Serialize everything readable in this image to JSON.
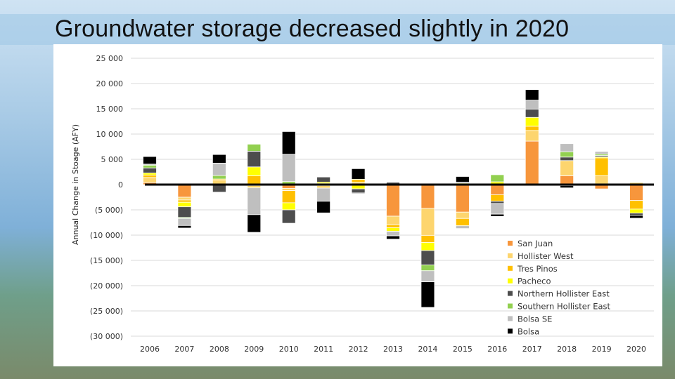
{
  "title": "Groundwater storage decreased slightly in 2020",
  "chart_data": {
    "type": "bar",
    "stacked": true,
    "title": "",
    "xlabel": "",
    "ylabel": "Annual Change in Stoage (AFY)",
    "ylim": [
      -30000,
      25000
    ],
    "yticks": [
      25000,
      20000,
      15000,
      10000,
      5000,
      0,
      -5000,
      -10000,
      -15000,
      -20000,
      -25000,
      -30000
    ],
    "ytick_labels": [
      "25 000",
      "20 000",
      "15 000",
      "10 000",
      "5 000",
      "0",
      "(5 000)",
      "(10 000)",
      "(15 000)",
      "(20 000)",
      "(25 000)",
      "(30 000)"
    ],
    "grid": true,
    "legend_position": "bottom-right",
    "categories": [
      "2006",
      "2007",
      "2008",
      "2009",
      "2010",
      "2011",
      "2012",
      "2013",
      "2014",
      "2015",
      "2016",
      "2017",
      "2018",
      "2019",
      "2020"
    ],
    "series": [
      {
        "name": "San Juan",
        "color": "#F7963C",
        "values": [
          400,
          -2500,
          0,
          -200,
          -750,
          -200,
          0,
          -6250,
          -4700,
          -5450,
          -2000,
          8600,
          1750,
          -850,
          -3150
        ]
      },
      {
        "name": "Hollister West",
        "color": "#FDD56E",
        "values": [
          1000,
          -550,
          900,
          -450,
          -450,
          -500,
          450,
          -1700,
          -5350,
          -1250,
          0,
          2100,
          3000,
          1750,
          400
        ]
      },
      {
        "name": "Tres Pinos",
        "color": "#FFC000",
        "values": [
          500,
          -450,
          200,
          1750,
          -2400,
          200,
          600,
          -600,
          -1400,
          -1450,
          -1300,
          850,
          0,
          3550,
          -1700
        ]
      },
      {
        "name": "Pacheco",
        "color": "#FFFF00",
        "values": [
          400,
          -900,
          0,
          1750,
          -1400,
          300,
          -850,
          -700,
          -1600,
          300,
          550,
          1750,
          -200,
          200,
          -800
        ]
      },
      {
        "name": "Northern Hollister East",
        "color": "#4D4D4D",
        "values": [
          1000,
          -2100,
          -1500,
          3100,
          -2650,
          1000,
          -800,
          450,
          -2850,
          200,
          -450,
          1650,
          700,
          250,
          -450
        ]
      },
      {
        "name": "Southern Hollister East",
        "color": "#92D050",
        "values": [
          550,
          -200,
          700,
          1400,
          600,
          0,
          0,
          0,
          -1150,
          0,
          1400,
          0,
          1050,
          300,
          0
        ]
      },
      {
        "name": "Bolsa SE",
        "color": "#BFBFBF",
        "values": [
          200,
          -1400,
          2450,
          -5300,
          5400,
          -2600,
          -200,
          -900,
          -2200,
          -550,
          -2100,
          1750,
          1600,
          500,
          0
        ]
      },
      {
        "name": "Bolsa",
        "color": "#000000",
        "values": [
          1500,
          -500,
          1700,
          -3500,
          4500,
          -2300,
          2100,
          -650,
          -5050,
          1100,
          -450,
          2100,
          -450,
          0,
          -550
        ]
      }
    ]
  }
}
